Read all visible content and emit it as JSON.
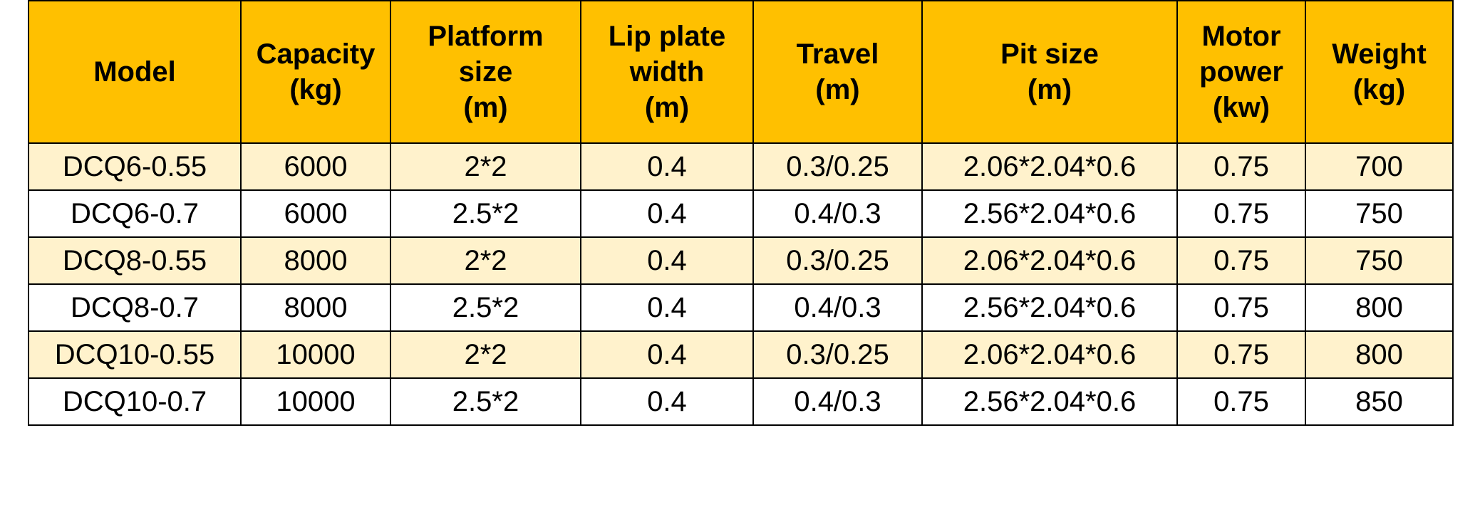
{
  "table": {
    "headers": [
      [
        "Model"
      ],
      [
        "Capacity",
        "(kg)"
      ],
      [
        "Platform",
        "size",
        "(m)"
      ],
      [
        "Lip plate",
        "width",
        "(m)"
      ],
      [
        "Travel",
        "(m)"
      ],
      [
        "Pit size",
        "(m)"
      ],
      [
        "Motor",
        "power",
        "(kw)"
      ],
      [
        "Weight",
        "(kg)"
      ]
    ],
    "rows": [
      [
        "DCQ6-0.55",
        "6000",
        "2*2",
        "0.4",
        "0.3/0.25",
        "2.06*2.04*0.6",
        "0.75",
        "700"
      ],
      [
        "DCQ6-0.7",
        "6000",
        "2.5*2",
        "0.4",
        "0.4/0.3",
        "2.56*2.04*0.6",
        "0.75",
        "750"
      ],
      [
        "DCQ8-0.55",
        "8000",
        "2*2",
        "0.4",
        "0.3/0.25",
        "2.06*2.04*0.6",
        "0.75",
        "750"
      ],
      [
        "DCQ8-0.7",
        "8000",
        "2.5*2",
        "0.4",
        "0.4/0.3",
        "2.56*2.04*0.6",
        "0.75",
        "800"
      ],
      [
        "DCQ10-0.55",
        "10000",
        "2*2",
        "0.4",
        "0.3/0.25",
        "2.06*2.04*0.6",
        "0.75",
        "800"
      ],
      [
        "DCQ10-0.7",
        "10000",
        "2.5*2",
        "0.4",
        "0.4/0.3",
        "2.56*2.04*0.6",
        "0.75",
        "850"
      ]
    ]
  },
  "colors": {
    "header_bg": "#ffc000",
    "row_alt_bg": "#fff2cc",
    "row_bg": "#ffffff",
    "border": "#000000"
  }
}
